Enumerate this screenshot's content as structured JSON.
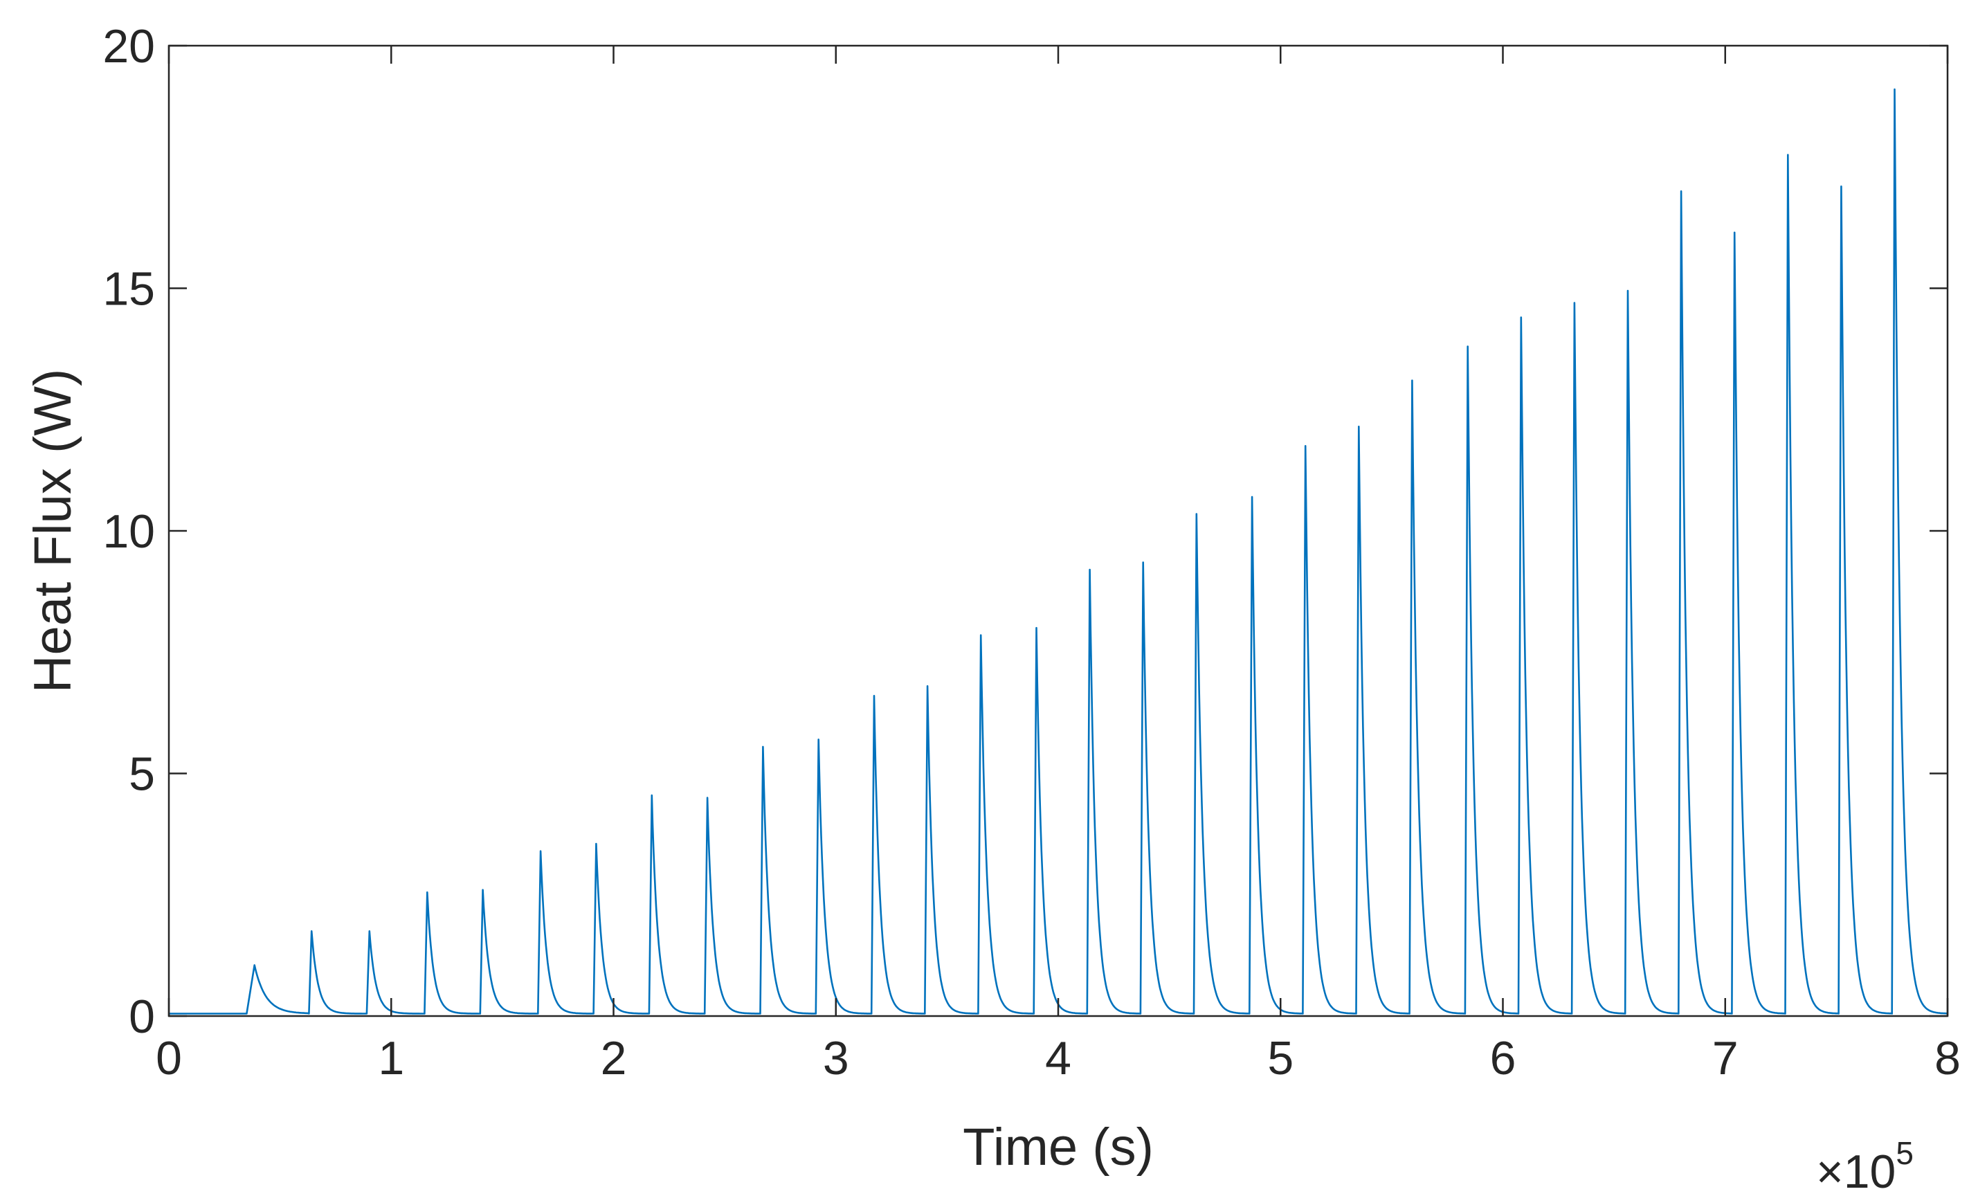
{
  "chart_data": {
    "type": "line",
    "xlabel": "Time (s)",
    "ylabel": "Heat Flux (W)",
    "x_multiplier_label": "×10",
    "x_multiplier_exponent": "5",
    "xlim": [
      0,
      800000
    ],
    "ylim": [
      0,
      20
    ],
    "x_ticks": [
      0,
      100000,
      200000,
      300000,
      400000,
      500000,
      600000,
      700000,
      800000
    ],
    "x_tick_labels": [
      "0",
      "1",
      "2",
      "3",
      "4",
      "5",
      "6",
      "7",
      "8"
    ],
    "y_ticks": [
      0,
      5,
      10,
      15,
      20
    ],
    "y_tick_labels": [
      "0",
      "5",
      "10",
      "15",
      "20"
    ],
    "grid": false,
    "baseline": 0.05,
    "series": [
      {
        "color": "#0072BD",
        "pulses": [
          {
            "t": 35000,
            "peak": 1.05
          },
          {
            "t": 63000,
            "peak": 1.75
          },
          {
            "t": 89000,
            "peak": 1.75
          },
          {
            "t": 115000,
            "peak": 2.55
          },
          {
            "t": 140000,
            "peak": 2.6
          },
          {
            "t": 166000,
            "peak": 3.4
          },
          {
            "t": 191000,
            "peak": 3.55
          },
          {
            "t": 216000,
            "peak": 4.55
          },
          {
            "t": 241000,
            "peak": 4.5
          },
          {
            "t": 266000,
            "peak": 5.55
          },
          {
            "t": 291000,
            "peak": 5.7
          },
          {
            "t": 316000,
            "peak": 6.6
          },
          {
            "t": 340000,
            "peak": 6.8
          },
          {
            "t": 364000,
            "peak": 7.85
          },
          {
            "t": 389000,
            "peak": 8.0
          },
          {
            "t": 413000,
            "peak": 9.2
          },
          {
            "t": 437000,
            "peak": 9.35
          },
          {
            "t": 461000,
            "peak": 10.35
          },
          {
            "t": 486000,
            "peak": 10.7
          },
          {
            "t": 510000,
            "peak": 11.75
          },
          {
            "t": 534000,
            "peak": 12.15
          },
          {
            "t": 558000,
            "peak": 13.1
          },
          {
            "t": 583000,
            "peak": 13.8
          },
          {
            "t": 607000,
            "peak": 14.4
          },
          {
            "t": 631000,
            "peak": 14.7
          },
          {
            "t": 655000,
            "peak": 14.95
          },
          {
            "t": 679000,
            "peak": 17.0
          },
          {
            "t": 703000,
            "peak": 16.15
          },
          {
            "t": 727000,
            "peak": 17.75
          },
          {
            "t": 751000,
            "peak": 17.1
          },
          {
            "t": 775000,
            "peak": 19.1
          }
        ]
      }
    ]
  }
}
